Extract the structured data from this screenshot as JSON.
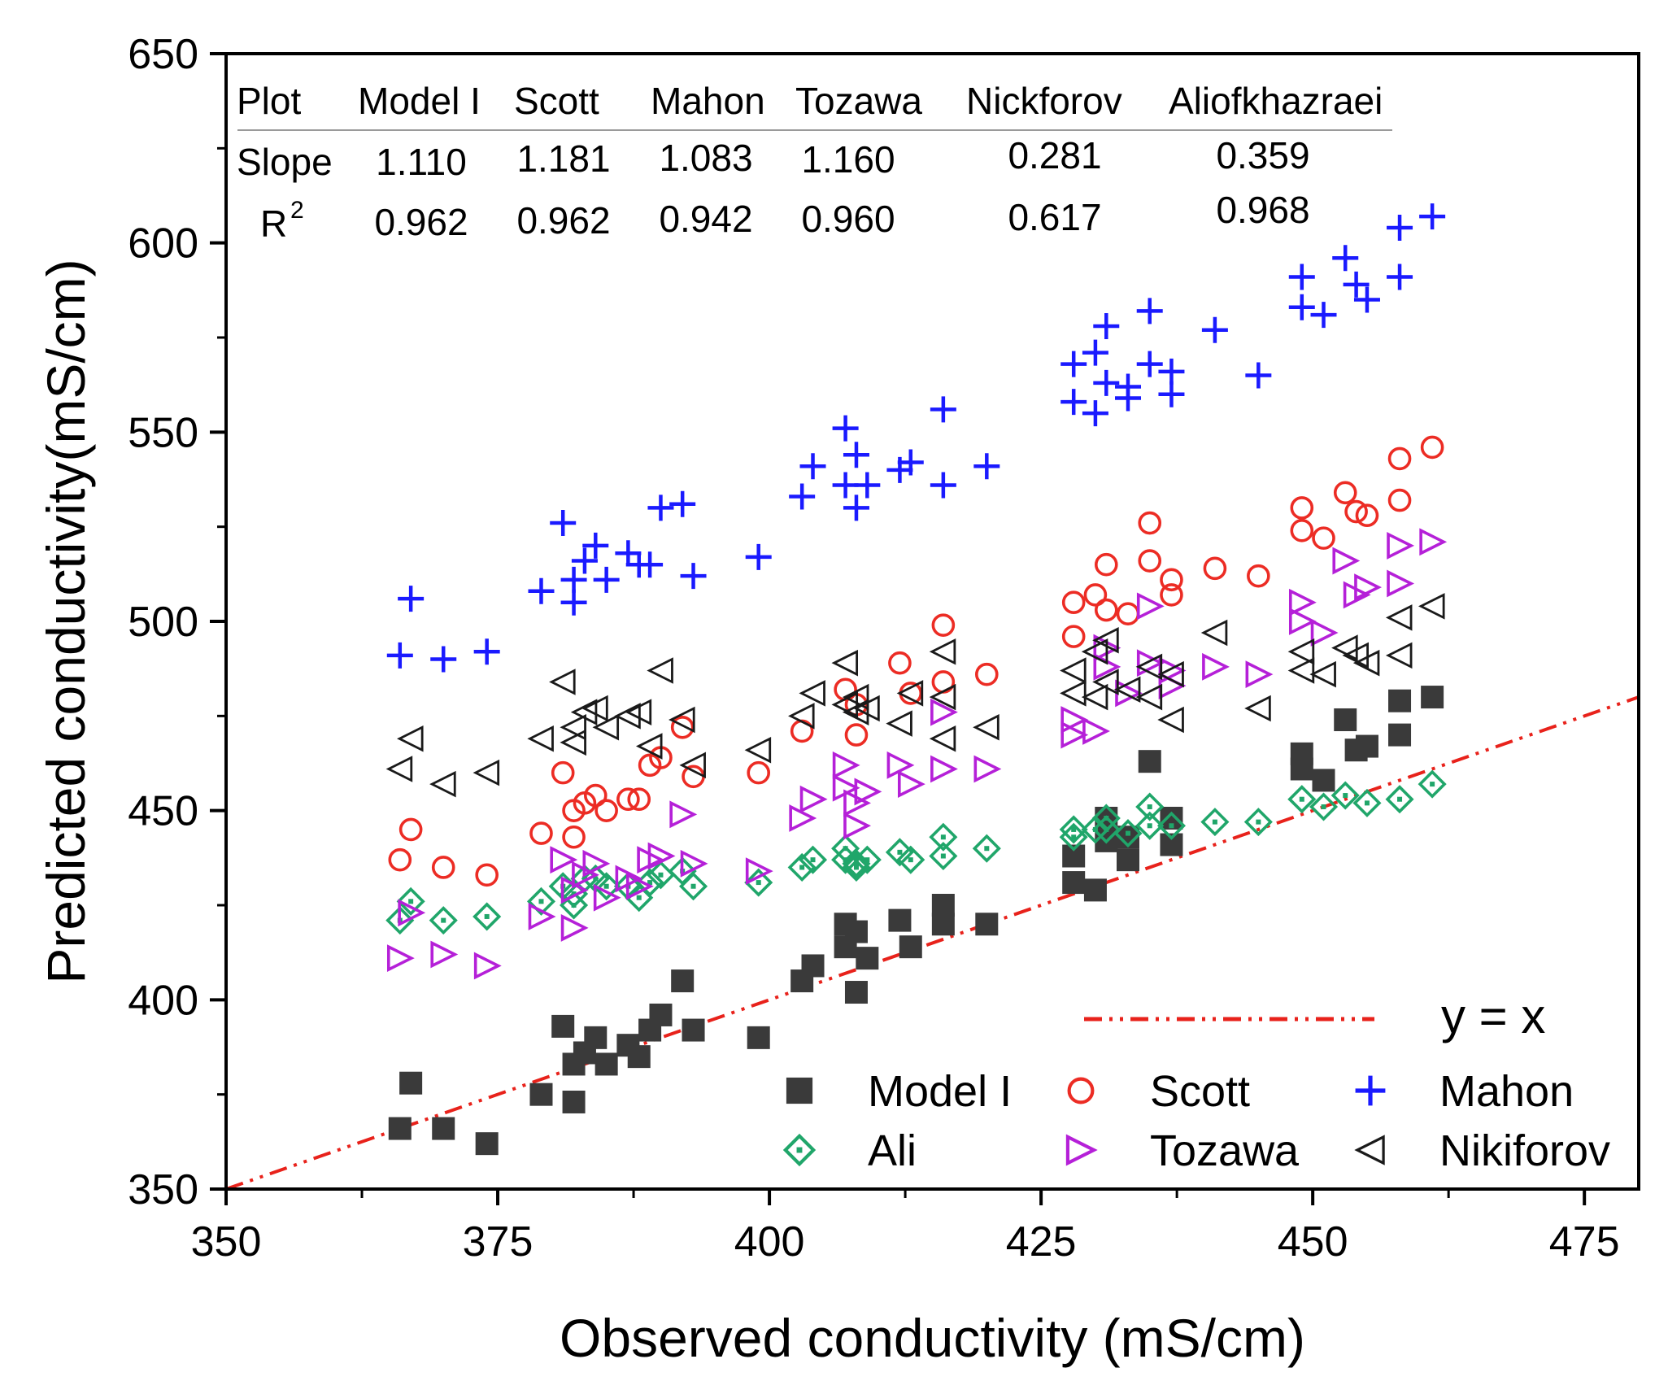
{
  "chart_data": {
    "type": "scatter",
    "title": "",
    "xlabel": "Observed conductivity (mS/cm)",
    "ylabel": "Predicted conductivity(mS/cm)",
    "xlim": [
      350,
      480
    ],
    "ylim": [
      350,
      650
    ],
    "x_ticks": [
      350,
      375,
      400,
      425,
      450,
      475
    ],
    "y_ticks": [
      350,
      400,
      450,
      500,
      550,
      600,
      650
    ],
    "grid": false,
    "legend_position": "bottom-right",
    "reference_line": {
      "label": "y = x",
      "slope": 1,
      "intercept": 0,
      "color": "#e8221b",
      "style": "dash-dot"
    },
    "stats_table": {
      "header": [
        "Plot",
        "Model I",
        "Scott",
        "Mahon",
        "Tozawa",
        "Nickforov",
        "Aliofkhazraei"
      ],
      "rows": [
        {
          "label": "Slope",
          "values": [
            "1.110",
            "1.181",
            "1.083",
            "1.160",
            "0.281",
            "0.359"
          ]
        },
        {
          "label": "R",
          "sup": "2",
          "values": [
            "0.962",
            "0.962",
            "0.942",
            "0.960",
            "0.617",
            "0.968"
          ]
        }
      ]
    },
    "series": [
      {
        "name": "Model I",
        "marker": "square",
        "color": "#3a3a3a",
        "points": [
          [
            366,
            366
          ],
          [
            367,
            378
          ],
          [
            370,
            366
          ],
          [
            374,
            362
          ],
          [
            379,
            375
          ],
          [
            381,
            393
          ],
          [
            382,
            373
          ],
          [
            382,
            383
          ],
          [
            383,
            386
          ],
          [
            384,
            390
          ],
          [
            385,
            383
          ],
          [
            387,
            388
          ],
          [
            388,
            385
          ],
          [
            389,
            392
          ],
          [
            390,
            396
          ],
          [
            392,
            405
          ],
          [
            393,
            392
          ],
          [
            399,
            390
          ],
          [
            403,
            405
          ],
          [
            404,
            409
          ],
          [
            407,
            420
          ],
          [
            407,
            414
          ],
          [
            408,
            402
          ],
          [
            408,
            418
          ],
          [
            409,
            411
          ],
          [
            412,
            421
          ],
          [
            413,
            414
          ],
          [
            416,
            420
          ],
          [
            416,
            425
          ],
          [
            420,
            420
          ],
          [
            428,
            431
          ],
          [
            428,
            438
          ],
          [
            430,
            429
          ],
          [
            431,
            448
          ],
          [
            431,
            442
          ],
          [
            433,
            443
          ],
          [
            433,
            437
          ],
          [
            435,
            463
          ],
          [
            437,
            441
          ],
          [
            437,
            448
          ],
          [
            449,
            461
          ],
          [
            449,
            465
          ],
          [
            451,
            458
          ],
          [
            453,
            474
          ],
          [
            454,
            466
          ],
          [
            455,
            467
          ],
          [
            458,
            470
          ],
          [
            458,
            479
          ],
          [
            461,
            480
          ]
        ]
      },
      {
        "name": "Scott",
        "marker": "circle",
        "color": "#ec2c24",
        "points": [
          [
            366,
            437
          ],
          [
            367,
            445
          ],
          [
            370,
            435
          ],
          [
            374,
            433
          ],
          [
            379,
            444
          ],
          [
            381,
            460
          ],
          [
            382,
            443
          ],
          [
            382,
            450
          ],
          [
            383,
            452
          ],
          [
            384,
            454
          ],
          [
            385,
            450
          ],
          [
            387,
            453
          ],
          [
            388,
            453
          ],
          [
            389,
            462
          ],
          [
            390,
            464
          ],
          [
            392,
            472
          ],
          [
            393,
            459
          ],
          [
            399,
            460
          ],
          [
            403,
            471
          ],
          [
            407,
            482
          ],
          [
            408,
            470
          ],
          [
            408,
            478
          ],
          [
            412,
            489
          ],
          [
            413,
            481
          ],
          [
            416,
            499
          ],
          [
            416,
            484
          ],
          [
            420,
            486
          ],
          [
            428,
            505
          ],
          [
            428,
            496
          ],
          [
            430,
            507
          ],
          [
            431,
            515
          ],
          [
            431,
            503
          ],
          [
            433,
            502
          ],
          [
            435,
            526
          ],
          [
            435,
            516
          ],
          [
            437,
            507
          ],
          [
            437,
            511
          ],
          [
            441,
            514
          ],
          [
            445,
            512
          ],
          [
            449,
            530
          ],
          [
            449,
            524
          ],
          [
            451,
            522
          ],
          [
            453,
            534
          ],
          [
            454,
            529
          ],
          [
            455,
            528
          ],
          [
            458,
            543
          ],
          [
            458,
            532
          ],
          [
            461,
            546
          ]
        ]
      },
      {
        "name": "Mahon",
        "marker": "plus",
        "color": "#1a1aff",
        "points": [
          [
            366,
            491
          ],
          [
            367,
            506
          ],
          [
            370,
            490
          ],
          [
            374,
            492
          ],
          [
            379,
            508
          ],
          [
            381,
            526
          ],
          [
            382,
            505
          ],
          [
            382,
            511
          ],
          [
            383,
            516
          ],
          [
            384,
            520
          ],
          [
            385,
            511
          ],
          [
            387,
            518
          ],
          [
            388,
            515
          ],
          [
            389,
            515
          ],
          [
            390,
            530
          ],
          [
            392,
            531
          ],
          [
            393,
            512
          ],
          [
            399,
            517
          ],
          [
            403,
            533
          ],
          [
            404,
            541
          ],
          [
            407,
            551
          ],
          [
            407,
            536
          ],
          [
            408,
            544
          ],
          [
            408,
            530
          ],
          [
            409,
            536
          ],
          [
            412,
            540
          ],
          [
            413,
            542
          ],
          [
            416,
            556
          ],
          [
            416,
            536
          ],
          [
            420,
            541
          ],
          [
            428,
            568
          ],
          [
            428,
            558
          ],
          [
            430,
            555
          ],
          [
            430,
            571
          ],
          [
            431,
            578
          ],
          [
            431,
            563
          ],
          [
            433,
            562
          ],
          [
            433,
            559
          ],
          [
            435,
            582
          ],
          [
            435,
            568
          ],
          [
            437,
            566
          ],
          [
            437,
            560
          ],
          [
            441,
            577
          ],
          [
            445,
            565
          ],
          [
            449,
            591
          ],
          [
            449,
            583
          ],
          [
            451,
            581
          ],
          [
            453,
            596
          ],
          [
            454,
            589
          ],
          [
            455,
            585
          ],
          [
            458,
            604
          ],
          [
            458,
            591
          ],
          [
            461,
            607
          ]
        ]
      },
      {
        "name": "Ali",
        "marker": "diamond",
        "color": "#20a66a",
        "points": [
          [
            366,
            421
          ],
          [
            367,
            426
          ],
          [
            370,
            421
          ],
          [
            374,
            422
          ],
          [
            379,
            426
          ],
          [
            381,
            430
          ],
          [
            382,
            425
          ],
          [
            382,
            428
          ],
          [
            383,
            432
          ],
          [
            384,
            432
          ],
          [
            385,
            430
          ],
          [
            387,
            430
          ],
          [
            388,
            427
          ],
          [
            389,
            431
          ],
          [
            390,
            433
          ],
          [
            392,
            434
          ],
          [
            393,
            430
          ],
          [
            399,
            431
          ],
          [
            403,
            435
          ],
          [
            404,
            437
          ],
          [
            407,
            440
          ],
          [
            407,
            437
          ],
          [
            408,
            436
          ],
          [
            408,
            435
          ],
          [
            409,
            437
          ],
          [
            412,
            439
          ],
          [
            413,
            437
          ],
          [
            416,
            443
          ],
          [
            416,
            438
          ],
          [
            420,
            440
          ],
          [
            428,
            445
          ],
          [
            428,
            443
          ],
          [
            430,
            445
          ],
          [
            431,
            448
          ],
          [
            431,
            445
          ],
          [
            433,
            444
          ],
          [
            435,
            451
          ],
          [
            435,
            446
          ],
          [
            437,
            446
          ],
          [
            441,
            447
          ],
          [
            445,
            447
          ],
          [
            449,
            453
          ],
          [
            451,
            451
          ],
          [
            453,
            454
          ],
          [
            455,
            452
          ],
          [
            458,
            453
          ],
          [
            461,
            457
          ]
        ]
      },
      {
        "name": "Tozawa",
        "marker": "triangle-right",
        "color": "#b520d8",
        "points": [
          [
            366,
            411
          ],
          [
            367,
            423
          ],
          [
            370,
            412
          ],
          [
            374,
            409
          ],
          [
            379,
            422
          ],
          [
            381,
            437
          ],
          [
            382,
            419
          ],
          [
            382,
            429
          ],
          [
            383,
            433
          ],
          [
            384,
            436
          ],
          [
            385,
            427
          ],
          [
            387,
            432
          ],
          [
            388,
            430
          ],
          [
            389,
            437
          ],
          [
            390,
            438
          ],
          [
            392,
            449
          ],
          [
            393,
            436
          ],
          [
            399,
            434
          ],
          [
            403,
            448
          ],
          [
            404,
            453
          ],
          [
            407,
            462
          ],
          [
            407,
            456
          ],
          [
            408,
            446
          ],
          [
            408,
            452
          ],
          [
            409,
            455
          ],
          [
            412,
            462
          ],
          [
            413,
            457
          ],
          [
            416,
            476
          ],
          [
            416,
            461
          ],
          [
            420,
            461
          ],
          [
            428,
            474
          ],
          [
            428,
            470
          ],
          [
            430,
            471
          ],
          [
            431,
            493
          ],
          [
            431,
            488
          ],
          [
            433,
            481
          ],
          [
            435,
            504
          ],
          [
            435,
            489
          ],
          [
            437,
            487
          ],
          [
            437,
            483
          ],
          [
            441,
            488
          ],
          [
            445,
            486
          ],
          [
            449,
            505
          ],
          [
            449,
            500
          ],
          [
            451,
            497
          ],
          [
            453,
            516
          ],
          [
            454,
            507
          ],
          [
            455,
            509
          ],
          [
            458,
            520
          ],
          [
            458,
            510
          ],
          [
            461,
            521
          ]
        ]
      },
      {
        "name": "Nikiforov",
        "marker": "triangle-left",
        "color": "#1a1a1a",
        "points": [
          [
            366,
            461
          ],
          [
            367,
            469
          ],
          [
            370,
            457
          ],
          [
            374,
            460
          ],
          [
            379,
            469
          ],
          [
            381,
            484
          ],
          [
            382,
            468
          ],
          [
            382,
            472
          ],
          [
            383,
            476
          ],
          [
            384,
            477
          ],
          [
            385,
            472
          ],
          [
            387,
            475
          ],
          [
            388,
            476
          ],
          [
            389,
            467
          ],
          [
            390,
            487
          ],
          [
            392,
            474
          ],
          [
            393,
            462
          ],
          [
            399,
            466
          ],
          [
            403,
            475
          ],
          [
            404,
            481
          ],
          [
            407,
            489
          ],
          [
            407,
            478
          ],
          [
            408,
            476
          ],
          [
            408,
            480
          ],
          [
            409,
            477
          ],
          [
            412,
            473
          ],
          [
            413,
            481
          ],
          [
            416,
            492
          ],
          [
            416,
            480
          ],
          [
            416,
            469
          ],
          [
            420,
            472
          ],
          [
            428,
            487
          ],
          [
            428,
            481
          ],
          [
            430,
            480
          ],
          [
            430,
            492
          ],
          [
            431,
            495
          ],
          [
            431,
            484
          ],
          [
            433,
            482
          ],
          [
            435,
            488
          ],
          [
            435,
            480
          ],
          [
            437,
            474
          ],
          [
            437,
            486
          ],
          [
            441,
            497
          ],
          [
            445,
            477
          ],
          [
            449,
            492
          ],
          [
            449,
            487
          ],
          [
            451,
            486
          ],
          [
            453,
            493
          ],
          [
            454,
            491
          ],
          [
            455,
            489
          ],
          [
            458,
            501
          ],
          [
            458,
            491
          ],
          [
            461,
            504
          ]
        ]
      }
    ]
  }
}
